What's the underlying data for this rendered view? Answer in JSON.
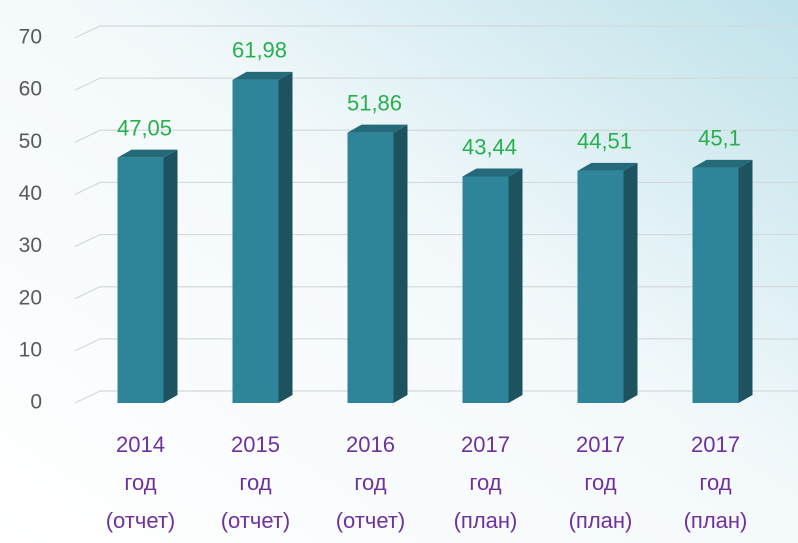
{
  "chart_data": {
    "type": "bar3d",
    "categories": [
      [
        "2014",
        "год",
        "(отчет)"
      ],
      [
        "2015",
        "год",
        "(отчет)"
      ],
      [
        "2016",
        "год",
        "(отчет)"
      ],
      [
        "2017",
        "год",
        "(план)"
      ],
      [
        "2017",
        "год",
        "(план)"
      ],
      [
        "2017",
        "год",
        "(план)"
      ]
    ],
    "values": [
      47.05,
      61.98,
      51.86,
      43.44,
      44.51,
      45.1
    ],
    "value_labels": [
      "47,05",
      "61,98",
      "51,86",
      "43,44",
      "44,51",
      "45,1"
    ],
    "color": "#2e8599",
    "ylim": [
      0,
      70
    ],
    "yticks": [
      0,
      10,
      20,
      30,
      40,
      50,
      60,
      70
    ],
    "grid": true
  }
}
